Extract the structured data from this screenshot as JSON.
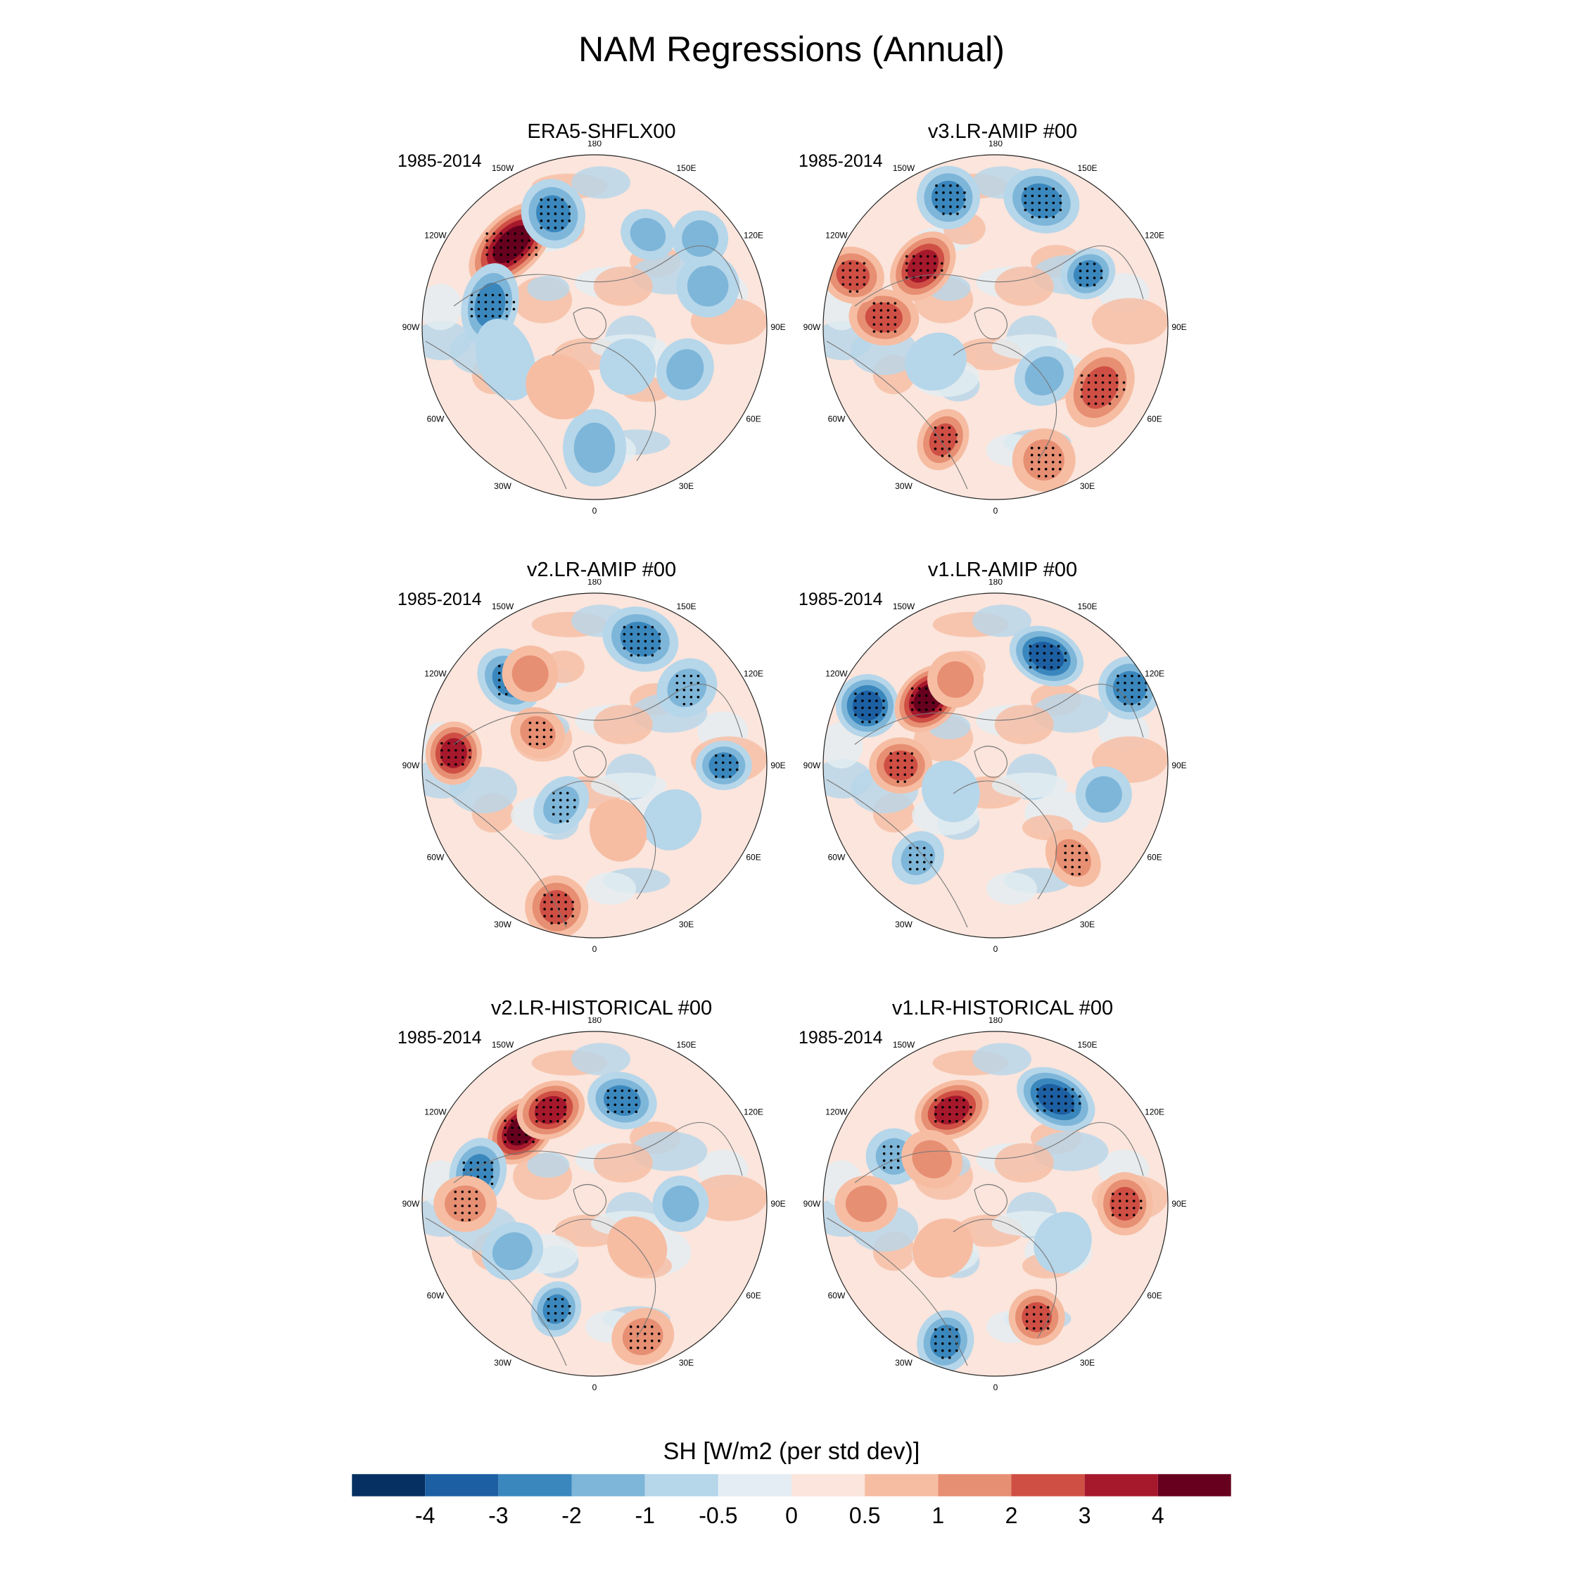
{
  "title": "NAM Regressions (Annual)",
  "panels": [
    {
      "title": "ERA5-SHFLX00",
      "period": "1985-2014",
      "blobs": [
        [
          225,
          0.68,
          4.2,
          75,
          42
        ],
        [
          258,
          0.62,
          -2.6,
          60,
          40
        ],
        [
          200,
          0.7,
          -2.2,
          45,
          50
        ],
        [
          150,
          0.62,
          -1.2,
          40,
          35
        ],
        [
          110,
          0.7,
          -1.5,
          45,
          45
        ],
        [
          65,
          0.58,
          -1.5,
          45,
          40
        ],
        [
          0,
          0.7,
          -1.2,
          45,
          55
        ],
        [
          290,
          0.55,
          -1,
          60,
          40
        ],
        [
          180,
          0.4,
          -0.5,
          55,
          50
        ],
        [
          330,
          0.4,
          0.6,
          50,
          45
        ],
        [
          40,
          0.3,
          -0.6,
          40,
          40
        ],
        [
          130,
          0.8,
          -1.5,
          40,
          40
        ]
      ]
    },
    {
      "title": "v3.LR-AMIP  #00",
      "period": "1985-2014",
      "blobs": [
        [
          230,
          0.55,
          3.6,
          55,
          40
        ],
        [
          265,
          0.65,
          2.8,
          40,
          50
        ],
        [
          250,
          0.88,
          2.2,
          40,
          45
        ],
        [
          160,
          0.78,
          -2.6,
          55,
          45
        ],
        [
          200,
          0.8,
          -2.8,
          45,
          45
        ],
        [
          120,
          0.62,
          -2.2,
          35,
          40
        ],
        [
          60,
          0.7,
          2.2,
          60,
          45
        ],
        [
          20,
          0.82,
          2.0,
          45,
          45
        ],
        [
          335,
          0.72,
          2.2,
          35,
          45
        ],
        [
          45,
          0.4,
          -1.2,
          45,
          40
        ],
        [
          300,
          0.4,
          -0.8,
          40,
          45
        ]
      ]
    },
    {
      "title": "v2.LR-AMIP  #00",
      "period": "1985-2014",
      "blobs": [
        [
          265,
          0.82,
          3.6,
          45,
          40
        ],
        [
          225,
          0.7,
          -2.4,
          40,
          50
        ],
        [
          160,
          0.78,
          -2.6,
          55,
          45
        ],
        [
          215,
          0.65,
          1.6,
          40,
          40
        ],
        [
          240,
          0.38,
          2.0,
          35,
          40
        ],
        [
          320,
          0.3,
          -2.0,
          35,
          45
        ],
        [
          345,
          0.85,
          2.2,
          45,
          45
        ],
        [
          130,
          0.7,
          -2.0,
          40,
          45
        ],
        [
          90,
          0.75,
          -2.2,
          35,
          40
        ],
        [
          55,
          0.55,
          -1.0,
          45,
          40
        ],
        [
          20,
          0.4,
          1.0,
          40,
          45
        ]
      ]
    },
    {
      "title": "v1.LR-AMIP  #00",
      "period": "1985-2014",
      "blobs": [
        [
          245,
          0.82,
          -3.8,
          45,
          45
        ],
        [
          225,
          0.55,
          4.2,
          55,
          40
        ],
        [
          155,
          0.7,
          -3.4,
          55,
          40
        ],
        [
          270,
          0.55,
          3.0,
          40,
          45
        ],
        [
          120,
          0.9,
          -2.2,
          45,
          45
        ],
        [
          40,
          0.7,
          2.0,
          35,
          45
        ],
        [
          320,
          0.7,
          -2.0,
          35,
          40
        ],
        [
          75,
          0.65,
          -1.5,
          40,
          40
        ],
        [
          205,
          0.55,
          1.6,
          40,
          40
        ],
        [
          300,
          0.3,
          -0.8,
          45,
          40
        ]
      ]
    },
    {
      "title": "v2.LR-HISTORICAL  #00",
      "period": "1985-2014",
      "blobs": [
        [
          225,
          0.6,
          4.2,
          55,
          40
        ],
        [
          205,
          0.6,
          4.0,
          50,
          40
        ],
        [
          255,
          0.7,
          -2.6,
          50,
          40
        ],
        [
          165,
          0.62,
          -2.4,
          50,
          40
        ],
        [
          270,
          0.75,
          2.0,
          40,
          45
        ],
        [
          340,
          0.65,
          -2.2,
          35,
          40
        ],
        [
          20,
          0.82,
          2.0,
          45,
          40
        ],
        [
          300,
          0.55,
          -1.5,
          40,
          45
        ],
        [
          90,
          0.5,
          -1.2,
          40,
          40
        ],
        [
          45,
          0.35,
          0.8,
          40,
          45
        ]
      ]
    },
    {
      "title": "v1.LR-HISTORICAL  #00",
      "period": "1985-2014",
      "blobs": [
        [
          205,
          0.6,
          3.6,
          55,
          40
        ],
        [
          150,
          0.7,
          -3.6,
          60,
          40
        ],
        [
          90,
          0.75,
          3.0,
          45,
          40
        ],
        [
          20,
          0.7,
          2.2,
          40,
          40
        ],
        [
          340,
          0.85,
          -2.6,
          40,
          45
        ],
        [
          245,
          0.65,
          -2.0,
          40,
          40
        ],
        [
          270,
          0.75,
          1.8,
          40,
          45
        ],
        [
          235,
          0.45,
          1.6,
          40,
          45
        ],
        [
          60,
          0.45,
          -0.8,
          45,
          40
        ],
        [
          310,
          0.4,
          0.6,
          40,
          45
        ]
      ]
    }
  ],
  "lon_labels": [
    "180",
    "150E",
    "120E",
    "90E",
    "60E",
    "30E",
    "0",
    "30W",
    "60W",
    "90W",
    "120W",
    "150W"
  ],
  "colorbar": {
    "label": "SH [W/m2 (per std dev)]",
    "ticks": [
      "-4",
      "-3",
      "-2",
      "-1",
      "-0.5",
      "0",
      "0.5",
      "1",
      "2",
      "3",
      "4"
    ],
    "levels": [
      -4,
      -3,
      -2,
      -1,
      -0.5,
      0,
      0.5,
      1,
      2,
      3,
      4
    ],
    "colors": [
      "#053061",
      "#1d5fa3",
      "#3a87bd",
      "#7eb6d9",
      "#b6d6ea",
      "#e3edf3",
      "#fbe5dc",
      "#f6bda3",
      "#e78f73",
      "#cf4f45",
      "#a6182c",
      "#67001f"
    ]
  }
}
